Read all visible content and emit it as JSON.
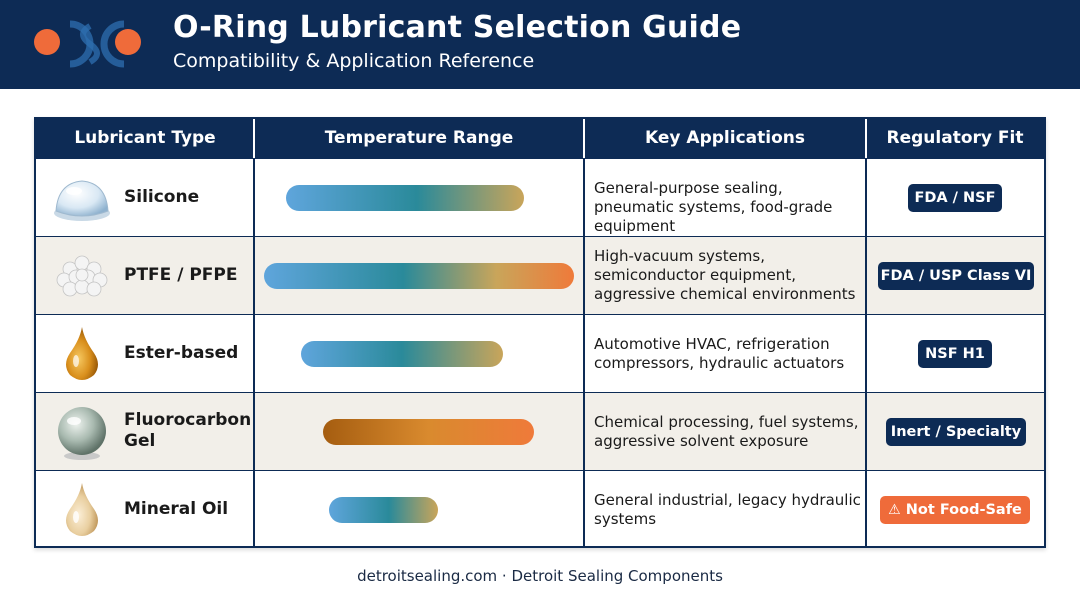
{
  "header": {
    "title": "O-Ring Lubricant Selection Guide",
    "subtitle": "Compatibility & Application Reference"
  },
  "table": {
    "columns": [
      "Lubricant Type",
      "Temperature Range",
      "Key Applications",
      "Regulatory Fit"
    ],
    "rows": [
      {
        "name": "Silicone",
        "icon": "clear-gel-dome-icon",
        "temperature_range_fraction": [
          0.07,
          0.84
        ],
        "applications": "General-purpose sealing, pneumatic systems, food-grade equipment",
        "regulatory": "FDA / NSF",
        "regulatory_style": "navy"
      },
      {
        "name": "PTFE / PFPE",
        "icon": "white-powder-cluster-icon",
        "temperature_range_fraction": [
          0.0,
          1.0
        ],
        "applications": "High-vacuum systems, semiconductor equipment, aggressive chemical environments",
        "regulatory": "FDA / USP Class VI",
        "regulatory_style": "navy"
      },
      {
        "name": "Ester-based",
        "icon": "amber-droplet-icon",
        "temperature_range_fraction": [
          0.12,
          0.77
        ],
        "applications": "Automotive HVAC, refrigeration compressors, hydraulic actuators",
        "regulatory": "NSF H1",
        "regulatory_style": "navy"
      },
      {
        "name": "Fluorocarbon Gel",
        "icon": "gray-gel-sphere-icon",
        "temperature_range_fraction": [
          0.19,
          0.87
        ],
        "applications": "Chemical processing, fuel systems, aggressive solvent exposure",
        "regulatory": "Inert / Specialty",
        "regulatory_style": "navy"
      },
      {
        "name": "Mineral Oil",
        "icon": "light-oil-droplet-icon",
        "temperature_range_fraction": [
          0.21,
          0.56
        ],
        "applications": "General industrial, legacy hydraulic systems",
        "regulatory": "Not Food-Safe",
        "regulatory_style": "orange",
        "regulatory_icon": "warning-icon"
      }
    ]
  },
  "footer": "detroitsealing.com · Detroit Sealing Components",
  "colors": {
    "navy": "#0d2b55",
    "accent_orange": "#ef6b3a",
    "cool_blue": "#5fa5dc",
    "teal": "#2a8a9a",
    "gold": "#c9a55a",
    "warm_orange": "#ef7a3a",
    "brown": "#a55d10",
    "alt_row": "#f2efe9"
  }
}
